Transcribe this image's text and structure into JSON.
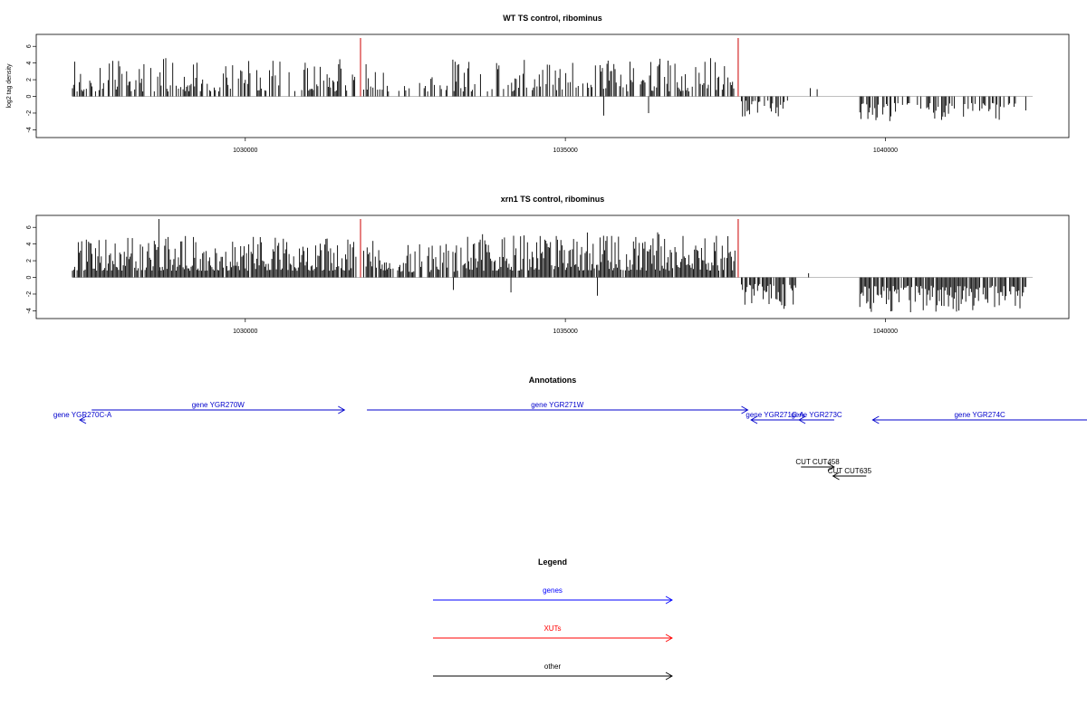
{
  "chart_data": [
    {
      "type": "bar",
      "title": "WT TS control, ribominus",
      "ylabel": "log2 tag density",
      "xlim": [
        1027300,
        1042300
      ],
      "ylim": [
        -4.5,
        7
      ],
      "yticks": [
        -4,
        -2,
        0,
        2,
        4,
        6
      ],
      "xticks": [
        1030000,
        1035000,
        1040000
      ],
      "grid": false,
      "baseline_color": "#aaaaaa",
      "highlight_color": "#cc0000",
      "highlights": [
        {
          "x": 1031800,
          "y": 7.0
        },
        {
          "x": 1037700,
          "y": 7.0
        }
      ],
      "segments": [
        {
          "from": 1027300,
          "to": 1031750,
          "sign": 1,
          "density": 0.55,
          "min": 0.6,
          "max": 4.6,
          "seed": 11
        },
        {
          "from": 1031850,
          "to": 1032200,
          "sign": 1,
          "density": 0.35,
          "min": 0.8,
          "max": 4.0,
          "seed": 12
        },
        {
          "from": 1032200,
          "to": 1032900,
          "sign": 1,
          "density": 0.2,
          "min": 0.6,
          "max": 2.5,
          "seed": 13
        },
        {
          "from": 1032900,
          "to": 1035200,
          "sign": 1,
          "density": 0.5,
          "min": 0.6,
          "max": 4.5,
          "seed": 14
        },
        {
          "from": 1035200,
          "to": 1037650,
          "sign": 1,
          "density": 0.55,
          "min": 0.6,
          "max": 4.6,
          "seed": 15
        },
        {
          "from": 1037750,
          "to": 1038500,
          "sign": -1,
          "density": 0.5,
          "min": 0.5,
          "max": 3.5,
          "seed": 16
        },
        {
          "from": 1038700,
          "to": 1039000,
          "sign": 1,
          "density": 0.15,
          "min": 0.8,
          "max": 2.3,
          "seed": 17
        },
        {
          "from": 1039600,
          "to": 1042200,
          "sign": -1,
          "density": 0.45,
          "min": 0.8,
          "max": 3.0,
          "seed": 18
        }
      ],
      "extra_marks": [
        {
          "x": 1035600,
          "y": -2.3
        },
        {
          "x": 1036300,
          "y": -2.0
        }
      ]
    },
    {
      "type": "bar",
      "title": "xrn1 TS control, ribominus",
      "ylabel": "log2 tag density",
      "xlim": [
        1027300,
        1042300
      ],
      "ylim": [
        -4.5,
        7
      ],
      "yticks": [
        -4,
        -2,
        0,
        2,
        4,
        6
      ],
      "xticks": [
        1030000,
        1035000,
        1040000
      ],
      "grid": false,
      "baseline_color": "#aaaaaa",
      "highlight_color": "#cc0000",
      "highlights": [
        {
          "x": 1031800,
          "y": 7.0
        },
        {
          "x": 1037700,
          "y": 7.0
        }
      ],
      "segments": [
        {
          "from": 1027300,
          "to": 1031750,
          "sign": 1,
          "density": 0.95,
          "min": 0.8,
          "max": 5.0,
          "seed": 21
        },
        {
          "from": 1031850,
          "to": 1032200,
          "sign": 1,
          "density": 0.9,
          "min": 0.8,
          "max": 4.5,
          "seed": 22
        },
        {
          "from": 1032200,
          "to": 1033400,
          "sign": 1,
          "density": 0.7,
          "min": 0.6,
          "max": 4.0,
          "seed": 23
        },
        {
          "from": 1033400,
          "to": 1037650,
          "sign": 1,
          "density": 0.95,
          "min": 0.8,
          "max": 5.5,
          "seed": 24
        },
        {
          "from": 1037750,
          "to": 1038600,
          "sign": -1,
          "density": 0.85,
          "min": 0.8,
          "max": 3.8,
          "seed": 25
        },
        {
          "from": 1039600,
          "to": 1042200,
          "sign": -1,
          "density": 0.85,
          "min": 1.0,
          "max": 4.2,
          "seed": 26
        }
      ],
      "extra_marks": [
        {
          "x": 1028650,
          "y": 7.0
        },
        {
          "x": 1033250,
          "y": -1.5
        },
        {
          "x": 1034150,
          "y": -1.8
        },
        {
          "x": 1035500,
          "y": -2.2
        },
        {
          "x": 1038800,
          "y": 0.5
        }
      ]
    }
  ],
  "annotations": {
    "title": "Annotations",
    "xlim": [
      1027300,
      1042300
    ],
    "features": [
      {
        "label": "gene YGR270C-A",
        "from": 1027000,
        "to": 1027500,
        "strand": "-",
        "color": "#0000cc",
        "row": 1
      },
      {
        "label": "gene YGR270W",
        "from": 1027600,
        "to": 1031550,
        "strand": "+",
        "color": "#0000cc",
        "row": 0
      },
      {
        "label": "gene YGR271W",
        "from": 1031900,
        "to": 1037850,
        "strand": "+",
        "color": "#0000cc",
        "row": 0
      },
      {
        "label": "gene YGR271C-A",
        "from": 1037900,
        "to": 1038650,
        "strand": "-",
        "color": "#0000cc",
        "row": 1
      },
      {
        "label": "gene YGR273C",
        "from": 1038650,
        "to": 1039200,
        "strand": "-",
        "color": "#0000cc",
        "row": 1
      },
      {
        "label": "gene YGR274C",
        "from": 1039800,
        "to": 1043500,
        "strand": "-",
        "color": "#0000cc",
        "row": 1
      },
      {
        "label": "CUT CUT458",
        "from": 1038680,
        "to": 1039200,
        "strand": "+",
        "color": "#000000",
        "row": 3
      },
      {
        "label": "CUT CUT635",
        "from": 1039180,
        "to": 1039700,
        "strand": "-",
        "color": "#000000",
        "row": 4
      }
    ]
  },
  "legend": {
    "title": "Legend",
    "items": [
      {
        "label": "genes",
        "color": "#0000ff"
      },
      {
        "label": "XUTs",
        "color": "#ff0000"
      },
      {
        "label": "other",
        "color": "#000000"
      }
    ]
  }
}
